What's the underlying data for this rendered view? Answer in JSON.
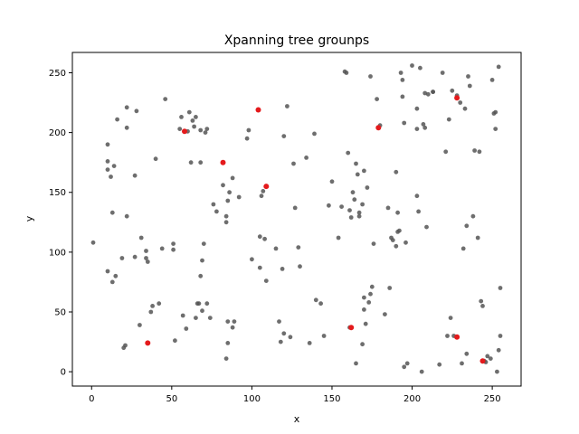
{
  "chart_data": {
    "type": "scatter",
    "title": "Xpanning tree grounps",
    "xlabel": "x",
    "ylabel": "y",
    "xlim": [
      -12,
      268
    ],
    "ylim": [
      -12,
      267
    ],
    "xticks": [
      0,
      50,
      100,
      150,
      200,
      250
    ],
    "yticks": [
      0,
      50,
      100,
      150,
      200,
      250
    ],
    "grid": false,
    "series": [
      {
        "color": "#555555",
        "points": [
          [
            1,
            108
          ],
          [
            10,
            190
          ],
          [
            10,
            176
          ],
          [
            10,
            169
          ],
          [
            10,
            84
          ],
          [
            12,
            163
          ],
          [
            13,
            133
          ],
          [
            13,
            75
          ],
          [
            14,
            172
          ],
          [
            15,
            80
          ],
          [
            16,
            211
          ],
          [
            19,
            95
          ],
          [
            20,
            20
          ],
          [
            21,
            22
          ],
          [
            22,
            221
          ],
          [
            22,
            204
          ],
          [
            22,
            130
          ],
          [
            27,
            164
          ],
          [
            27,
            96
          ],
          [
            28,
            218
          ],
          [
            30,
            39
          ],
          [
            31,
            112
          ],
          [
            34,
            101
          ],
          [
            34,
            95
          ],
          [
            35,
            92
          ],
          [
            37,
            50
          ],
          [
            38,
            55
          ],
          [
            40,
            178
          ],
          [
            42,
            57
          ],
          [
            44,
            103
          ],
          [
            46,
            228
          ],
          [
            51,
            107
          ],
          [
            51,
            102
          ],
          [
            52,
            26
          ],
          [
            55,
            203
          ],
          [
            56,
            213
          ],
          [
            57,
            47
          ],
          [
            59,
            36
          ],
          [
            60,
            201
          ],
          [
            61,
            217
          ],
          [
            62,
            175
          ],
          [
            63,
            210
          ],
          [
            64,
            205
          ],
          [
            65,
            45
          ],
          [
            65,
            213
          ],
          [
            66,
            57
          ],
          [
            67,
            57
          ],
          [
            68,
            175
          ],
          [
            68,
            202
          ],
          [
            68,
            80
          ],
          [
            69,
            93
          ],
          [
            69,
            51
          ],
          [
            70,
            107
          ],
          [
            71,
            200
          ],
          [
            72,
            203
          ],
          [
            72,
            57
          ],
          [
            74,
            45
          ],
          [
            76,
            140
          ],
          [
            78,
            134
          ],
          [
            82,
            156
          ],
          [
            84,
            125
          ],
          [
            84,
            130
          ],
          [
            84,
            11
          ],
          [
            85,
            143
          ],
          [
            85,
            24
          ],
          [
            85,
            42
          ],
          [
            86,
            150
          ],
          [
            88,
            162
          ],
          [
            88,
            37
          ],
          [
            89,
            42
          ],
          [
            92,
            146
          ],
          [
            97,
            195
          ],
          [
            98,
            202
          ],
          [
            100,
            94
          ],
          [
            105,
            113
          ],
          [
            105,
            87
          ],
          [
            106,
            147
          ],
          [
            107,
            151
          ],
          [
            108,
            111
          ],
          [
            109,
            76
          ],
          [
            115,
            103
          ],
          [
            117,
            42
          ],
          [
            118,
            25
          ],
          [
            119,
            86
          ],
          [
            120,
            197
          ],
          [
            120,
            32
          ],
          [
            122,
            222
          ],
          [
            124,
            29
          ],
          [
            126,
            174
          ],
          [
            127,
            137
          ],
          [
            129,
            104
          ],
          [
            130,
            88
          ],
          [
            134,
            179
          ],
          [
            136,
            24
          ],
          [
            139,
            199
          ],
          [
            140,
            60
          ],
          [
            143,
            57
          ],
          [
            145,
            30
          ],
          [
            148,
            139
          ],
          [
            150,
            159
          ],
          [
            154,
            112
          ],
          [
            156,
            138
          ],
          [
            158,
            251
          ],
          [
            159,
            250
          ],
          [
            160,
            183
          ],
          [
            161,
            135
          ],
          [
            161,
            37
          ],
          [
            162,
            129
          ],
          [
            163,
            150
          ],
          [
            164,
            144
          ],
          [
            165,
            7
          ],
          [
            165,
            174
          ],
          [
            166,
            165
          ],
          [
            167,
            133
          ],
          [
            167,
            130
          ],
          [
            169,
            140
          ],
          [
            169,
            23
          ],
          [
            170,
            168
          ],
          [
            170,
            62
          ],
          [
            170,
            52
          ],
          [
            171,
            40
          ],
          [
            172,
            154
          ],
          [
            173,
            58
          ],
          [
            174,
            247
          ],
          [
            174,
            65
          ],
          [
            175,
            71
          ],
          [
            176,
            107
          ],
          [
            178,
            228
          ],
          [
            180,
            206
          ],
          [
            183,
            48
          ],
          [
            185,
            137
          ],
          [
            186,
            70
          ],
          [
            187,
            112
          ],
          [
            188,
            110
          ],
          [
            190,
            167
          ],
          [
            190,
            105
          ],
          [
            191,
            117
          ],
          [
            191,
            133
          ],
          [
            192,
            118
          ],
          [
            193,
            250
          ],
          [
            194,
            244
          ],
          [
            194,
            230
          ],
          [
            195,
            208
          ],
          [
            195,
            4
          ],
          [
            196,
            108
          ],
          [
            197,
            7
          ],
          [
            200,
            256
          ],
          [
            203,
            220
          ],
          [
            203,
            147
          ],
          [
            203,
            203
          ],
          [
            204,
            134
          ],
          [
            205,
            254
          ],
          [
            206,
            0
          ],
          [
            207,
            207
          ],
          [
            208,
            204
          ],
          [
            208,
            233
          ],
          [
            209,
            121
          ],
          [
            210,
            232
          ],
          [
            213,
            234
          ],
          [
            213,
            234
          ],
          [
            217,
            6
          ],
          [
            219,
            250
          ],
          [
            221,
            184
          ],
          [
            222,
            30
          ],
          [
            223,
            211
          ],
          [
            224,
            45
          ],
          [
            225,
            235
          ],
          [
            226,
            30
          ],
          [
            228,
            231
          ],
          [
            230,
            225
          ],
          [
            231,
            7
          ],
          [
            232,
            103
          ],
          [
            233,
            220
          ],
          [
            234,
            122
          ],
          [
            234,
            15
          ],
          [
            235,
            247
          ],
          [
            236,
            239
          ],
          [
            238,
            130
          ],
          [
            239,
            185
          ],
          [
            241,
            112
          ],
          [
            242,
            184
          ],
          [
            243,
            59
          ],
          [
            244,
            55
          ],
          [
            245,
            9
          ],
          [
            246,
            8
          ],
          [
            247,
            13
          ],
          [
            249,
            11
          ],
          [
            250,
            244
          ],
          [
            251,
            216
          ],
          [
            252,
            217
          ],
          [
            252,
            203
          ],
          [
            253,
            0
          ],
          [
            254,
            18
          ],
          [
            254,
            255
          ],
          [
            255,
            30
          ],
          [
            255,
            70
          ]
        ]
      },
      {
        "color": "#e41a1c",
        "points": [
          [
            35,
            24
          ],
          [
            58,
            201
          ],
          [
            82,
            175
          ],
          [
            104,
            219
          ],
          [
            109,
            155
          ],
          [
            162,
            37
          ],
          [
            179,
            204
          ],
          [
            228,
            229
          ],
          [
            228,
            29
          ],
          [
            244,
            9
          ]
        ]
      }
    ]
  }
}
